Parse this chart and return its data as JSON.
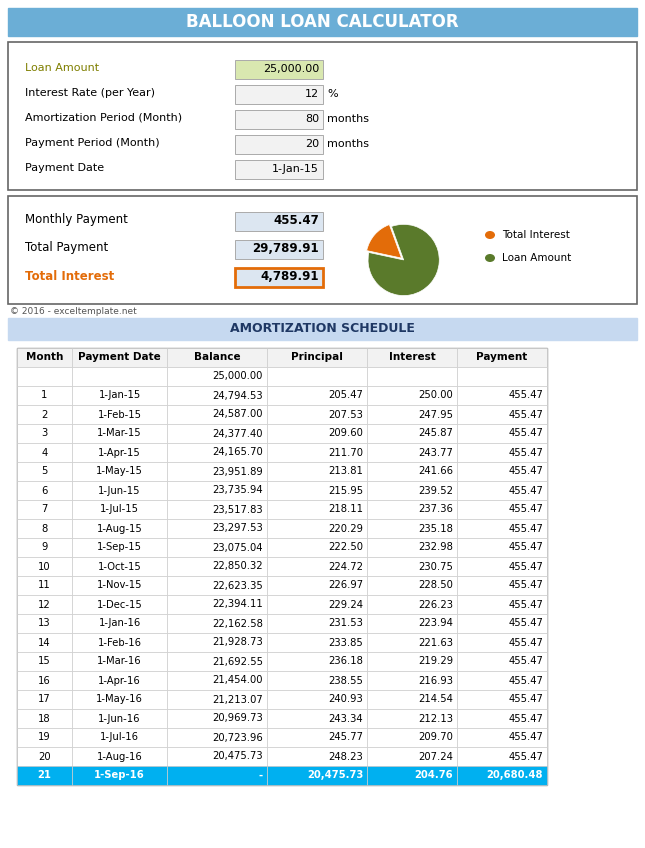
{
  "title": "BALLOON LOAN CALCULATOR",
  "title_bg": "#6baed6",
  "title_color": "white",
  "loan_amount": "25,000.00",
  "interest_rate": "12",
  "amort_period": "80",
  "payment_period": "20",
  "payment_date": "1-Jan-15",
  "monthly_payment": "455.47",
  "total_payment": "29,789.91",
  "total_interest": "4,789.91",
  "amort_schedule_title": "AMORTIZATION SCHEDULE",
  "amort_bg": "#c6d9f0",
  "copyright": "© 2016 - exceltemplate.net",
  "input_label_color": "#7f7f00",
  "interest_label_color": "#e36c09",
  "loan_amount_fill": "#d9e8b0",
  "input_fill": "#f2f2f2",
  "output_fill": "#dce6f1",
  "interest_border_color": "#e36c09",
  "pie_interest_color": "#e36c09",
  "pie_loan_color": "#5a7a2b",
  "pie_interest_value": 4789.91,
  "pie_loan_value": 25000.0,
  "table_header_bg": "#f2f2f2",
  "balloon_row_bg": "#00b0f0",
  "balloon_row_color": "white",
  "col_headers": [
    "Month",
    "Payment Date",
    "Balance",
    "Principal",
    "Interest",
    "Payment"
  ],
  "table_data": [
    [
      "",
      "",
      "25,000.00",
      "",
      "",
      ""
    ],
    [
      "1",
      "1-Jan-15",
      "24,794.53",
      "205.47",
      "250.00",
      "455.47"
    ],
    [
      "2",
      "1-Feb-15",
      "24,587.00",
      "207.53",
      "247.95",
      "455.47"
    ],
    [
      "3",
      "1-Mar-15",
      "24,377.40",
      "209.60",
      "245.87",
      "455.47"
    ],
    [
      "4",
      "1-Apr-15",
      "24,165.70",
      "211.70",
      "243.77",
      "455.47"
    ],
    [
      "5",
      "1-May-15",
      "23,951.89",
      "213.81",
      "241.66",
      "455.47"
    ],
    [
      "6",
      "1-Jun-15",
      "23,735.94",
      "215.95",
      "239.52",
      "455.47"
    ],
    [
      "7",
      "1-Jul-15",
      "23,517.83",
      "218.11",
      "237.36",
      "455.47"
    ],
    [
      "8",
      "1-Aug-15",
      "23,297.53",
      "220.29",
      "235.18",
      "455.47"
    ],
    [
      "9",
      "1-Sep-15",
      "23,075.04",
      "222.50",
      "232.98",
      "455.47"
    ],
    [
      "10",
      "1-Oct-15",
      "22,850.32",
      "224.72",
      "230.75",
      "455.47"
    ],
    [
      "11",
      "1-Nov-15",
      "22,623.35",
      "226.97",
      "228.50",
      "455.47"
    ],
    [
      "12",
      "1-Dec-15",
      "22,394.11",
      "229.24",
      "226.23",
      "455.47"
    ],
    [
      "13",
      "1-Jan-16",
      "22,162.58",
      "231.53",
      "223.94",
      "455.47"
    ],
    [
      "14",
      "1-Feb-16",
      "21,928.73",
      "233.85",
      "221.63",
      "455.47"
    ],
    [
      "15",
      "1-Mar-16",
      "21,692.55",
      "236.18",
      "219.29",
      "455.47"
    ],
    [
      "16",
      "1-Apr-16",
      "21,454.00",
      "238.55",
      "216.93",
      "455.47"
    ],
    [
      "17",
      "1-May-16",
      "21,213.07",
      "240.93",
      "214.54",
      "455.47"
    ],
    [
      "18",
      "1-Jun-16",
      "20,969.73",
      "243.34",
      "212.13",
      "455.47"
    ],
    [
      "19",
      "1-Jul-16",
      "20,723.96",
      "245.77",
      "209.70",
      "455.47"
    ],
    [
      "20",
      "1-Aug-16",
      "20,475.73",
      "248.23",
      "207.24",
      "455.47"
    ],
    [
      "21",
      "1-Sep-16",
      "-",
      "20,475.73",
      "204.76",
      "20,680.48"
    ]
  ]
}
